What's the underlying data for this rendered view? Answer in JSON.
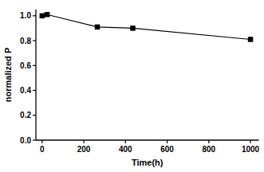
{
  "chart_data": {
    "type": "line",
    "x": [
      0,
      24,
      265,
      435,
      1000
    ],
    "values": [
      1.0,
      1.01,
      0.91,
      0.9,
      0.81
    ],
    "xlim": [
      -30,
      1040
    ],
    "ylim": [
      0,
      1.05
    ],
    "xticks": [
      0,
      200,
      400,
      600,
      800,
      1000
    ],
    "yticks": [
      {
        "value": 0,
        "label": "0.0"
      },
      0.2,
      0.4,
      0.6,
      0.8,
      {
        "value": 1,
        "label": "1.0"
      }
    ],
    "x_label": "Time(h)",
    "y_label": "normalized P",
    "marker": "square",
    "color": "#000000"
  }
}
